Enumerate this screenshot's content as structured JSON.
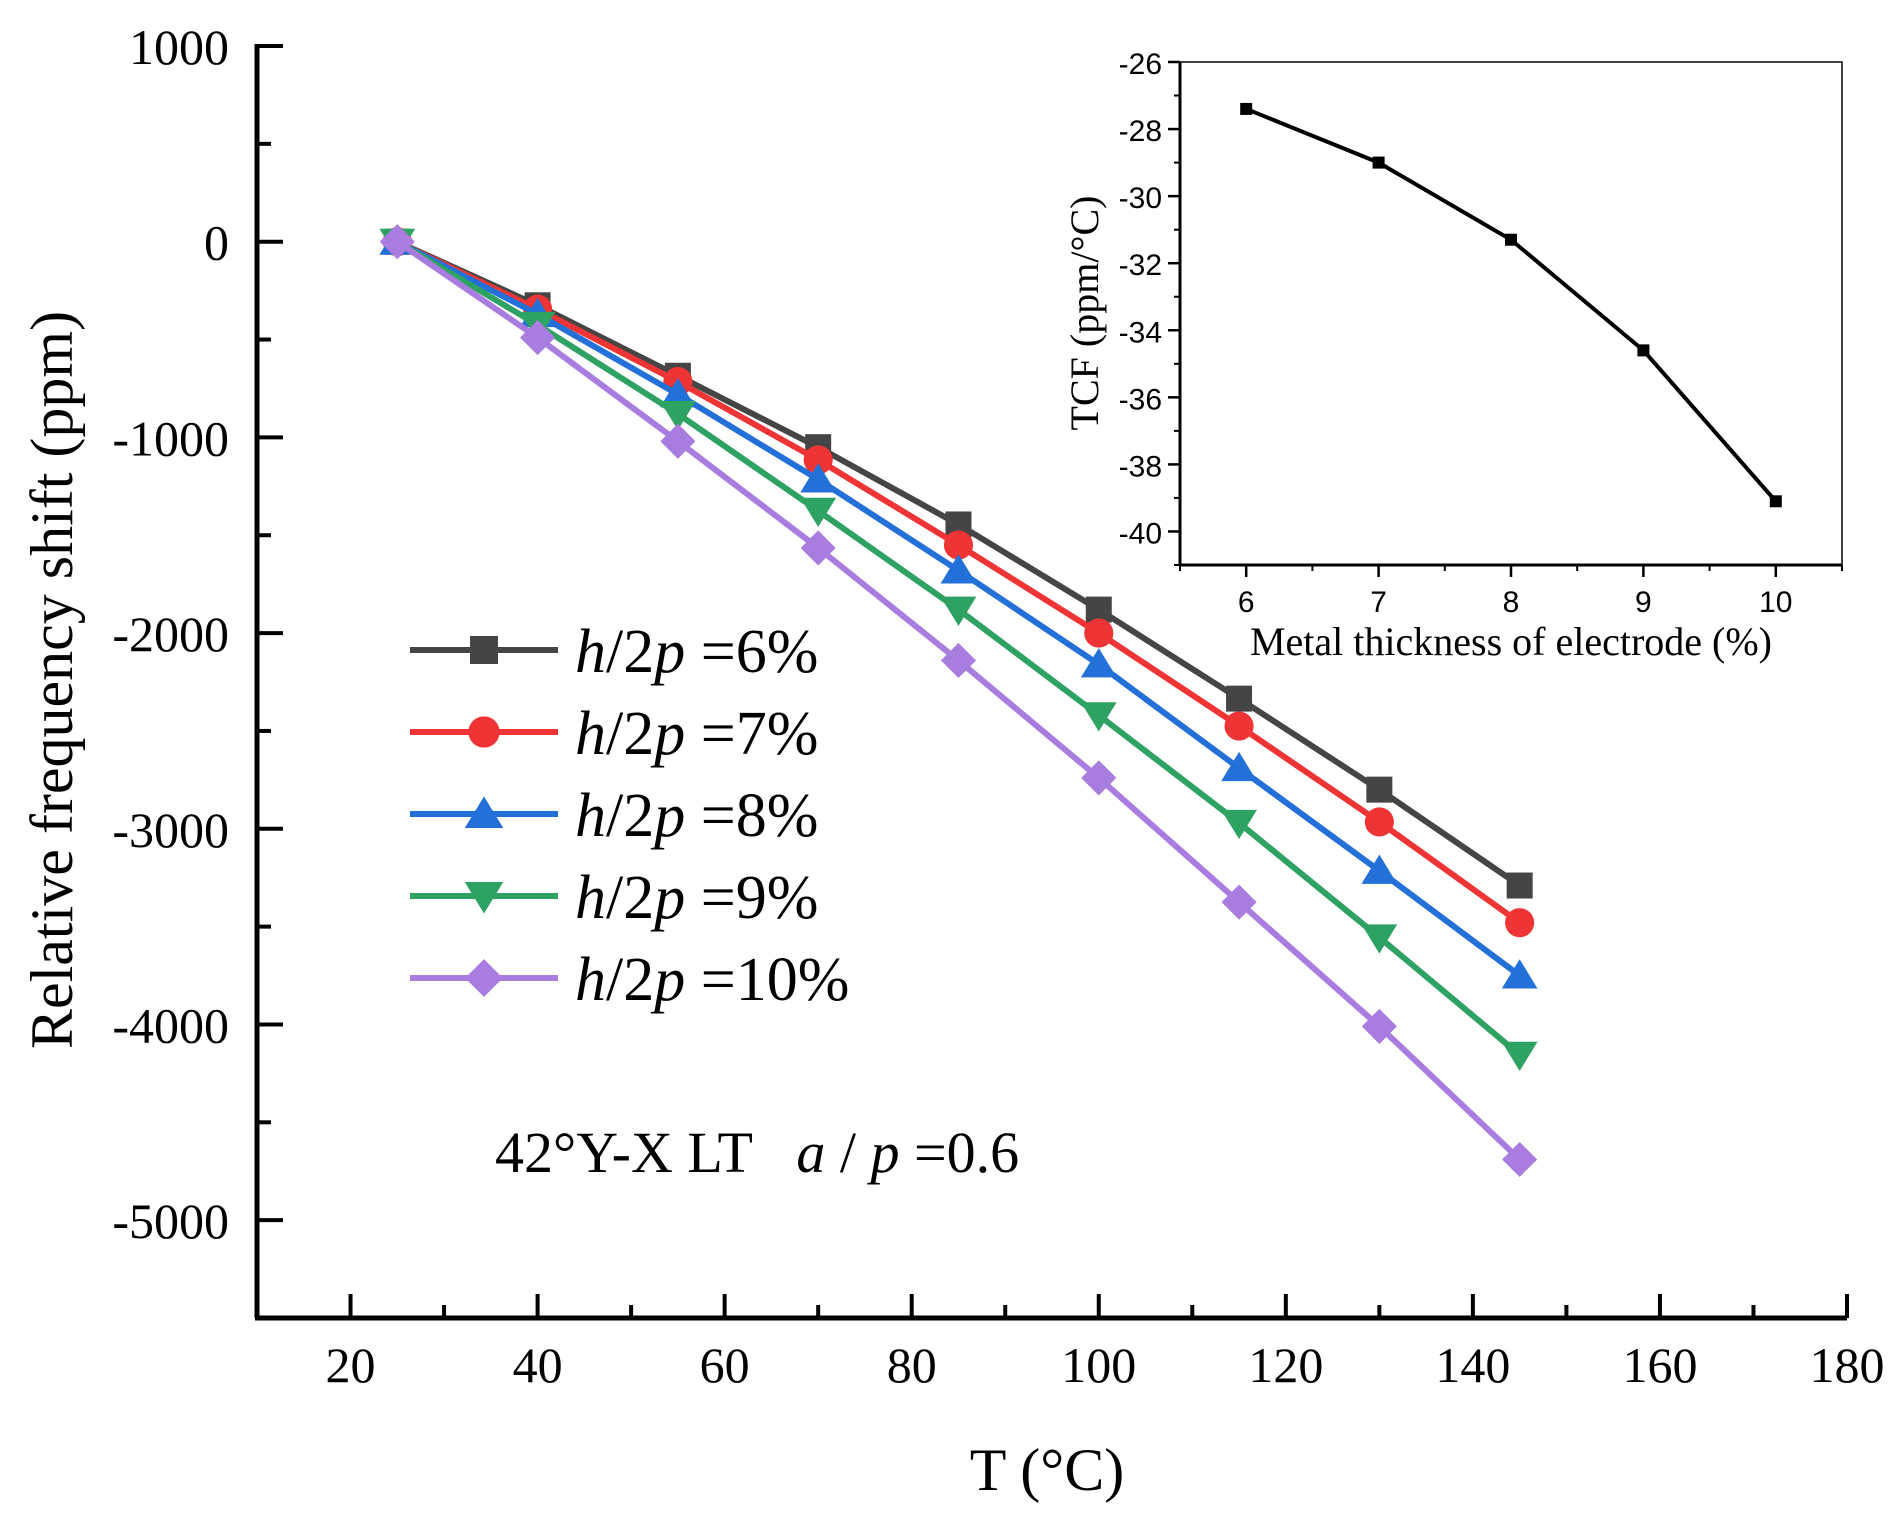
{
  "chart_data": [
    {
      "type": "line",
      "xlabel": "T (°C)",
      "ylabel": "Relative frequency shift (ppm)",
      "xlim": [
        10,
        180
      ],
      "ylim": [
        -5500,
        1000
      ],
      "x_ticks": [
        20,
        40,
        60,
        80,
        100,
        120,
        140,
        160,
        180
      ],
      "y_ticks": [
        1000,
        0,
        -1000,
        -2000,
        -3000,
        -4000,
        -5000
      ],
      "x": [
        25,
        40,
        55,
        70,
        85,
        100,
        115,
        130,
        145
      ],
      "legend_position": "middle-left",
      "annotation": {
        "prefix": "42°Y-X LT",
        "var_a": "a",
        "slash": "/",
        "var_p": "p",
        "suffix": "=0.6"
      },
      "series": [
        {
          "name_var_h": "h",
          "name_mid": "/2",
          "name_var_p": "p",
          "name_value": " =6%",
          "color": "#454545",
          "marker": "square",
          "values": [
            0,
            -325,
            -685,
            -1050,
            -1445,
            -1880,
            -2335,
            -2800,
            -3290
          ]
        },
        {
          "name_var_h": "h",
          "name_mid": "/2",
          "name_var_p": "p",
          "name_value": " =7%",
          "color": "#ee3434",
          "marker": "circle",
          "values": [
            0,
            -345,
            -715,
            -1115,
            -1550,
            -2000,
            -2475,
            -2965,
            -3480
          ]
        },
        {
          "name_var_h": "h",
          "name_mid": "/2",
          "name_var_p": "p",
          "name_value": " =8%",
          "color": "#2370d8",
          "marker": "triangle-up",
          "values": [
            0,
            -370,
            -780,
            -1215,
            -1680,
            -2160,
            -2690,
            -3215,
            -3750
          ]
        },
        {
          "name_var_h": "h",
          "name_mid": "/2",
          "name_var_p": "p",
          "name_value": " =9%",
          "color": "#2ea263",
          "marker": "triangle-down",
          "values": [
            0,
            -425,
            -880,
            -1375,
            -1880,
            -2420,
            -2970,
            -3555,
            -4155
          ]
        },
        {
          "name_var_h": "h",
          "name_mid": "/2",
          "name_var_p": "p",
          "name_value": " =10%",
          "color": "#a97de0",
          "marker": "diamond",
          "values": [
            0,
            -490,
            -1020,
            -1565,
            -2140,
            -2740,
            -3375,
            -4010,
            -4690
          ]
        }
      ]
    },
    {
      "type": "line",
      "xlabel": "Metal thickness of electrode (%)",
      "ylabel": "TCF (ppm/°C)",
      "xlim": [
        5.5,
        10.5
      ],
      "ylim": [
        -41,
        -26
      ],
      "x_ticks": [
        6,
        7,
        8,
        9,
        10
      ],
      "y_ticks": [
        -26,
        -28,
        -30,
        -32,
        -34,
        -36,
        -38,
        -40
      ],
      "x": [
        6,
        7,
        8,
        9,
        10
      ],
      "values": [
        -27.4,
        -29.0,
        -31.3,
        -34.6,
        -39.1
      ],
      "color": "#000000",
      "marker": "square"
    }
  ]
}
